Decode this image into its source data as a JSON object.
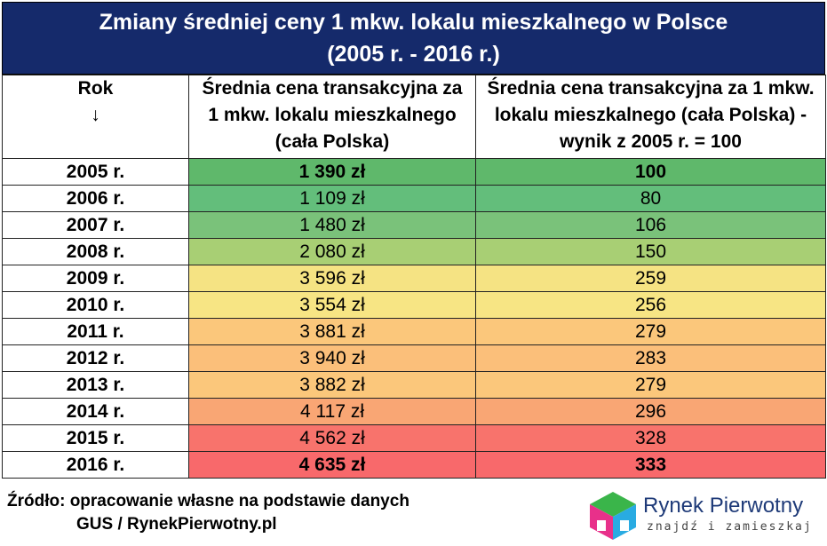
{
  "title": {
    "line1": "Zmiany średniej ceny 1 mkw. lokalu mieszkalnego w Polsce",
    "line2": "(2005 r. - 2016 r.)"
  },
  "headers": {
    "year": "Rok",
    "year_arrow": "↓",
    "price": "Średnia cena transakcyjna za 1 mkw. lokalu mieszkalnego (cała Polska)",
    "index": "Średnia cena transakcyjna za 1 mkw. lokalu mieszkalnego (cała Polska) - wynik z 2005 r. = 100"
  },
  "rows": [
    {
      "year": "2005 r.",
      "price": "1 390 zł",
      "index": "100",
      "color": "#5fb86b",
      "bold": true
    },
    {
      "year": "2006 r.",
      "price": "1 109 zł",
      "index": "80",
      "color": "#63be7b",
      "bold": false
    },
    {
      "year": "2007 r.",
      "price": "1 480 zł",
      "index": "106",
      "color": "#7ac27a",
      "bold": false
    },
    {
      "year": "2008 r.",
      "price": "2 080 zł",
      "index": "150",
      "color": "#a8cf74",
      "bold": false
    },
    {
      "year": "2009 r.",
      "price": "3 596 zł",
      "index": "259",
      "color": "#f5e383",
      "bold": false
    },
    {
      "year": "2010 r.",
      "price": "3 554 zł",
      "index": "256",
      "color": "#f7e584",
      "bold": false
    },
    {
      "year": "2011 r.",
      "price": "3 881 zł",
      "index": "279",
      "color": "#fbc77b",
      "bold": false
    },
    {
      "year": "2012 r.",
      "price": "3 940 zł",
      "index": "283",
      "color": "#fbbf7a",
      "bold": false
    },
    {
      "year": "2013 r.",
      "price": "3 882 zł",
      "index": "279",
      "color": "#fbc77b",
      "bold": false
    },
    {
      "year": "2014 r.",
      "price": "4 117 zł",
      "index": "296",
      "color": "#f9a674",
      "bold": false
    },
    {
      "year": "2015 r.",
      "price": "4 562 zł",
      "index": "328",
      "color": "#f8736c",
      "bold": false
    },
    {
      "year": "2016 r.",
      "price": "4 635 zł",
      "index": "333",
      "color": "#f8696b",
      "bold": true
    }
  ],
  "source": {
    "line1": "Źródło: opracowanie własne na podstawie danych",
    "line2": "GUS / RynekPierwotny.pl"
  },
  "logo": {
    "name": "Rynek Pierwotny",
    "tagline": "znajdź i zamieszkaj",
    "colors": [
      "#3ab54a",
      "#e8308a",
      "#29abe2",
      "#fbb03b"
    ]
  }
}
